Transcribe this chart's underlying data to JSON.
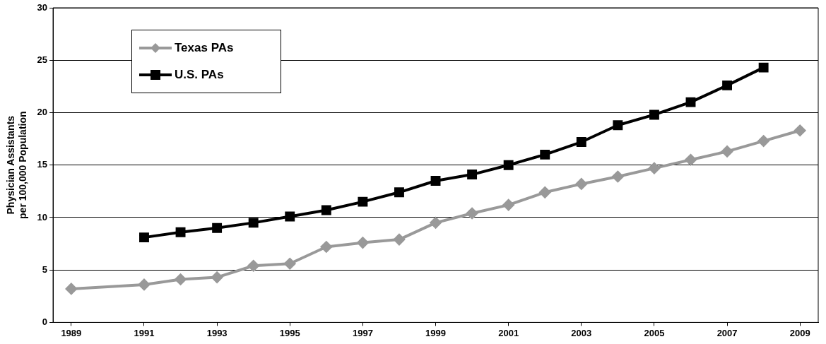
{
  "chart_data": {
    "type": "line",
    "ylabel": "Physician Assistants\nper 100,000 Population",
    "xlim": [
      1988.5,
      2009.5
    ],
    "xticks": [
      1989,
      1991,
      1993,
      1995,
      1997,
      1999,
      2001,
      2003,
      2005,
      2007,
      2009
    ],
    "ylim": [
      0,
      30
    ],
    "yticks": [
      0,
      5,
      10,
      15,
      20,
      25,
      30
    ],
    "grid": "y",
    "legend": "top left",
    "line_style": "solid",
    "series": [
      {
        "name": "Texas PAs",
        "color": "#999999",
        "marker": "diamond",
        "x": [
          1989,
          1991,
          1992,
          1993,
          1994,
          1995,
          1996,
          1997,
          1998,
          1999,
          2000,
          2001,
          2002,
          2003,
          2004,
          2005,
          2006,
          2007,
          2008,
          2009
        ],
        "values": [
          3.2,
          3.6,
          4.1,
          4.3,
          5.4,
          5.6,
          7.2,
          7.6,
          7.9,
          9.5,
          10.4,
          11.2,
          12.4,
          13.2,
          13.9,
          14.7,
          15.5,
          16.3,
          17.3,
          18.3
        ]
      },
      {
        "name": "U.S. PAs",
        "color": "#000000",
        "marker": "square",
        "x": [
          1991,
          1992,
          1993,
          1994,
          1995,
          1996,
          1997,
          1998,
          1999,
          2000,
          2001,
          2002,
          2003,
          2004,
          2005,
          2006,
          2007,
          2008
        ],
        "values": [
          8.1,
          8.6,
          9.0,
          9.5,
          10.1,
          10.7,
          11.5,
          12.4,
          13.5,
          14.1,
          15.0,
          16.0,
          17.2,
          18.8,
          19.8,
          21.0,
          22.6,
          24.3
        ]
      }
    ]
  }
}
